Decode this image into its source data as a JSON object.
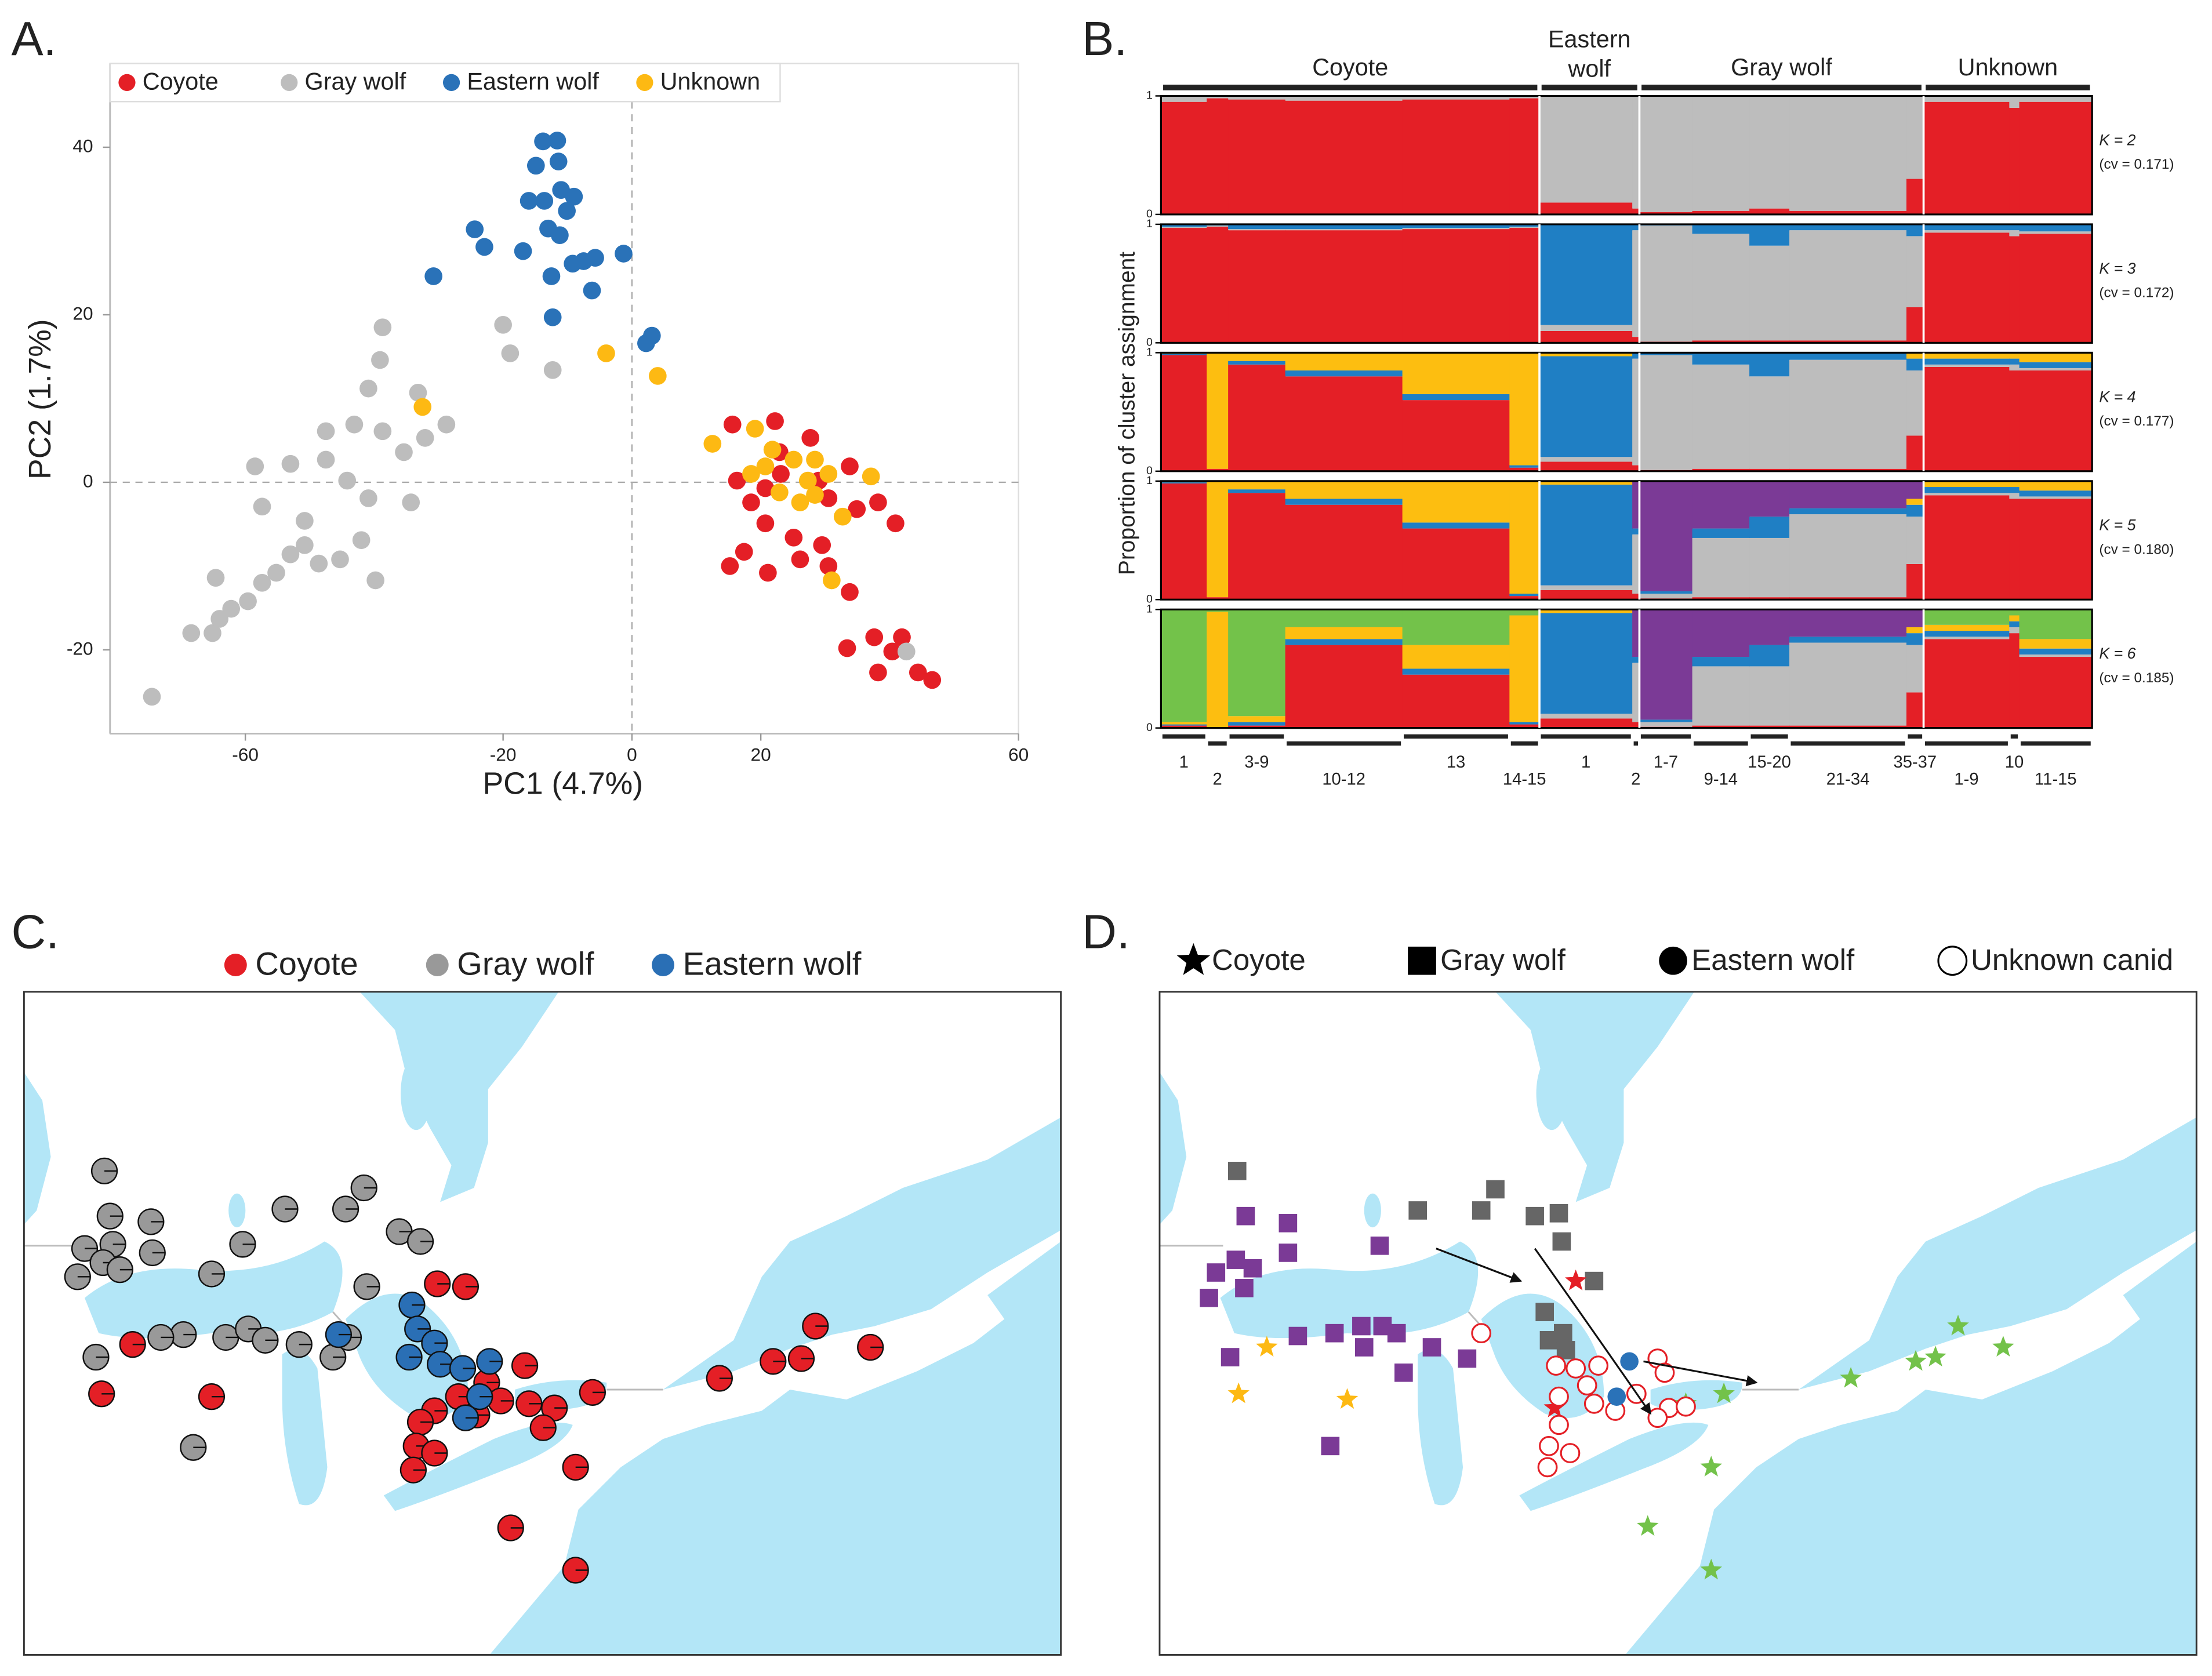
{
  "chart_data": [
    {
      "type": "scatter",
      "panel": "A.",
      "xlabel": "PC1 (4.7%)",
      "ylabel": "PC2 (1.7%)",
      "xlim": [
        -81,
        60
      ],
      "ylim": [
        -30,
        50
      ],
      "xticks": [
        -60,
        -20,
        0,
        20,
        60
      ],
      "yticks": [
        -20,
        0,
        20,
        40
      ],
      "zero_lines": true,
      "series": [
        {
          "name": "Coyote",
          "color": "#e41f26",
          "x": [
            15.6,
            22.2,
            27.7,
            16.3,
            18.5,
            20.7,
            23.1,
            29.0,
            33.8,
            38.2,
            40.9,
            20.7,
            25.1,
            29.5,
            15.2,
            21.1,
            26.1,
            30.5,
            33.8,
            33.4,
            37.6,
            40.4,
            41.9,
            38.2,
            44.4,
            46.6,
            17.4,
            30.5,
            34.9,
            22.9
          ],
          "values": [
            6.9,
            7.3,
            5.3,
            0.2,
            -2.4,
            -0.7,
            1.0,
            0.2,
            1.9,
            -2.4,
            -4.9,
            -4.9,
            -6.6,
            -7.5,
            -10.0,
            -10.8,
            -9.2,
            -10.0,
            -13.1,
            -19.8,
            -18.5,
            -20.2,
            -18.5,
            -22.7,
            -22.7,
            -23.6,
            -8.3,
            -1.9,
            -3.2,
            3.6
          ]
        },
        {
          "name": "Gray wolf",
          "color": "#bdbdbd",
          "x": [
            -74.5,
            -68.4,
            -65.1,
            -64.0,
            -62.2,
            -59.6,
            -57.4,
            -55.2,
            -53.0,
            -50.8,
            -48.6,
            -45.3,
            -42.0,
            -40.9,
            -57.4,
            -44.2,
            -47.5,
            -53.0,
            -58.5,
            -47.5,
            -43.1,
            -38.7,
            -35.4,
            -32.1,
            -28.8,
            -40.9,
            -33.2,
            -38.7,
            -39.1,
            -20.0,
            -18.9,
            -12.3,
            -34.3,
            -39.8,
            42.6,
            -64.6,
            -50.8
          ],
          "values": [
            -25.6,
            -18.0,
            -18.0,
            -16.3,
            -15.1,
            -14.2,
            -12.0,
            -10.8,
            -8.6,
            -7.5,
            -9.7,
            -9.2,
            -6.9,
            -1.9,
            -2.9,
            0.2,
            2.7,
            2.2,
            1.9,
            6.1,
            6.9,
            6.1,
            3.6,
            5.3,
            6.9,
            11.2,
            10.7,
            18.5,
            14.6,
            18.8,
            15.4,
            13.4,
            -2.4,
            -11.7,
            -20.2,
            -11.4,
            -4.6
          ]
        },
        {
          "name": "Eastern wolf",
          "color": "#2a72b8",
          "x": [
            -13.8,
            -11.6,
            -11.4,
            -14.9,
            -11.0,
            -9.0,
            -16.0,
            -13.6,
            -10.1,
            -24.4,
            -22.9,
            -16.9,
            -13.0,
            -11.2,
            -9.2,
            -7.5,
            -5.7,
            -1.3,
            -30.8,
            -12.5,
            -6.2,
            -12.3,
            2.2,
            3.1
          ],
          "values": [
            40.7,
            40.8,
            38.3,
            37.8,
            34.9,
            34.1,
            33.6,
            33.6,
            32.4,
            30.2,
            28.1,
            27.6,
            30.3,
            29.5,
            26.1,
            26.4,
            26.8,
            27.3,
            24.6,
            24.6,
            22.9,
            19.7,
            16.6,
            17.5
          ]
        },
        {
          "name": "Unknown",
          "color": "#fdb913",
          "x": [
            -32.5,
            -4.0,
            4.0,
            12.5,
            19.1,
            21.8,
            25.1,
            27.3,
            28.4,
            18.5,
            22.9,
            26.1,
            30.5,
            32.7,
            37.1,
            31.0,
            20.7,
            28.4
          ],
          "values": [
            9.0,
            15.4,
            12.7,
            4.6,
            6.4,
            3.9,
            2.7,
            0.2,
            -1.5,
            1.0,
            -1.2,
            -2.4,
            1.0,
            -4.1,
            0.7,
            -11.7,
            1.9,
            2.7
          ]
        }
      ]
    },
    {
      "type": "admixture",
      "panel": "B.",
      "ylabel": "Proportion of cluster assignment",
      "ylim": [
        0,
        1
      ],
      "yticks": [
        0,
        1
      ],
      "groups": [
        "Coyote",
        "Eastern wolf",
        "Gray wolf",
        "Unknown"
      ],
      "categories": [
        "1",
        "2",
        "3-9",
        "10-12",
        "13",
        "14-15",
        "1",
        "2",
        "1-7",
        "9-14",
        "15-20",
        "21-34",
        "35-37",
        "1-9",
        "10",
        "11-15"
      ],
      "rows": [
        {
          "label": "K = 2",
          "note": "(cv = 0.171)",
          "series": [
            {
              "color": "#e41f26",
              "values": [
                0.95,
                0.98,
                0.97,
                0.96,
                0.97,
                0.98,
                0.1,
                0.05,
                0.02,
                0.03,
                0.05,
                0.03,
                0.3,
                0.95,
                0.9,
                0.95
              ]
            },
            {
              "color": "#bdbdbd",
              "values": [
                0.05,
                0.02,
                0.03,
                0.04,
                0.03,
                0.02,
                0.9,
                0.95,
                0.98,
                0.97,
                0.95,
                0.97,
                0.7,
                0.05,
                0.1,
                0.05
              ]
            }
          ]
        },
        {
          "label": "K = 3",
          "note": "(cv = 0.172)",
          "series": [
            {
              "color": "#e41f26",
              "values": [
                0.97,
                0.98,
                0.95,
                0.95,
                0.96,
                0.97,
                0.1,
                0.05,
                0.01,
                0.02,
                0.02,
                0.02,
                0.3,
                0.93,
                0.9,
                0.92
              ]
            },
            {
              "color": "#bdbdbd",
              "values": [
                0.01,
                0.01,
                0.01,
                0.01,
                0.01,
                0.01,
                0.05,
                0.9,
                0.98,
                0.9,
                0.8,
                0.93,
                0.6,
                0.02,
                0.05,
                0.02
              ]
            },
            {
              "color": "#1f7fc4",
              "values": [
                0.02,
                0.01,
                0.04,
                0.04,
                0.03,
                0.02,
                0.85,
                0.05,
                0.01,
                0.08,
                0.18,
                0.05,
                0.1,
                0.05,
                0.05,
                0.06
              ]
            }
          ]
        },
        {
          "label": "K = 4",
          "note": "(cv = 0.177)",
          "series": [
            {
              "color": "#e41f26",
              "values": [
                0.98,
                0.02,
                0.9,
                0.8,
                0.6,
                0.03,
                0.08,
                0.05,
                0.01,
                0.02,
                0.02,
                0.02,
                0.3,
                0.88,
                0.85,
                0.85
              ]
            },
            {
              "color": "#bdbdbd",
              "values": [
                0,
                0,
                0,
                0,
                0,
                0,
                0.04,
                0.9,
                0.97,
                0.88,
                0.78,
                0.92,
                0.55,
                0.02,
                0.05,
                0.02
              ]
            },
            {
              "color": "#1f7fc4",
              "values": [
                0.01,
                0,
                0.03,
                0.05,
                0.05,
                0.02,
                0.85,
                0.05,
                0.02,
                0.1,
                0.2,
                0.06,
                0.1,
                0.05,
                0.05,
                0.05
              ]
            },
            {
              "color": "#fdbe10",
              "values": [
                0.01,
                0.98,
                0.07,
                0.15,
                0.35,
                0.95,
                0.03,
                0,
                0,
                0,
                0,
                0,
                0.05,
                0.05,
                0.05,
                0.08
              ]
            }
          ]
        },
        {
          "label": "K = 5",
          "note": "(cv = 0.180)",
          "series": [
            {
              "color": "#e41f26",
              "values": [
                0.98,
                0.02,
                0.9,
                0.8,
                0.6,
                0.03,
                0.08,
                0.05,
                0.01,
                0.02,
                0.02,
                0.02,
                0.3,
                0.88,
                0.85,
                0.85
              ]
            },
            {
              "color": "#bdbdbd",
              "values": [
                0,
                0,
                0,
                0,
                0,
                0,
                0.04,
                0.5,
                0.04,
                0.5,
                0.5,
                0.7,
                0.4,
                0.02,
                0.05,
                0.02
              ]
            },
            {
              "color": "#1f7fc4",
              "values": [
                0.01,
                0,
                0.03,
                0.05,
                0.05,
                0.02,
                0.85,
                0.05,
                0.02,
                0.08,
                0.18,
                0.05,
                0.1,
                0.05,
                0.05,
                0.05
              ]
            },
            {
              "color": "#fdbe10",
              "values": [
                0.01,
                0.98,
                0.07,
                0.15,
                0.35,
                0.95,
                0.03,
                0,
                0,
                0,
                0,
                0,
                0.05,
                0.05,
                0.05,
                0.08
              ]
            },
            {
              "color": "#7b3a96",
              "values": [
                0,
                0,
                0,
                0,
                0,
                0,
                0,
                0.4,
                0.93,
                0.4,
                0.3,
                0.23,
                0.15,
                0,
                0,
                0
              ]
            }
          ]
        },
        {
          "label": "K = 6",
          "note": "(cv = 0.185)",
          "series": [
            {
              "color": "#e41f26",
              "values": [
                0.02,
                0,
                0.02,
                0.7,
                0.45,
                0.03,
                0.08,
                0.05,
                0.01,
                0.02,
                0.02,
                0.02,
                0.3,
                0.75,
                0.8,
                0.6
              ]
            },
            {
              "color": "#bdbdbd",
              "values": [
                0,
                0,
                0,
                0,
                0,
                0,
                0.04,
                0.5,
                0.04,
                0.5,
                0.5,
                0.7,
                0.4,
                0.02,
                0.05,
                0.02
              ]
            },
            {
              "color": "#1f7fc4",
              "values": [
                0.01,
                0,
                0.03,
                0.05,
                0.05,
                0.02,
                0.85,
                0.05,
                0.02,
                0.08,
                0.18,
                0.05,
                0.1,
                0.05,
                0.05,
                0.05
              ]
            },
            {
              "color": "#fdbe10",
              "values": [
                0.02,
                0.98,
                0.05,
                0.1,
                0.2,
                0.9,
                0.03,
                0,
                0,
                0,
                0,
                0,
                0.05,
                0.05,
                0.05,
                0.08
              ]
            },
            {
              "color": "#7b3a96",
              "values": [
                0,
                0,
                0,
                0,
                0,
                0,
                0,
                0.4,
                0.93,
                0.4,
                0.3,
                0.23,
                0.15,
                0,
                0,
                0
              ]
            },
            {
              "color": "#73c24a",
              "values": [
                0.95,
                0.02,
                0.9,
                0.15,
                0.3,
                0.05,
                0,
                0,
                0,
                0,
                0,
                0,
                0,
                0.13,
                0.05,
                0.25
              ]
            }
          ]
        }
      ]
    },
    {
      "type": "map",
      "panel": "C.",
      "legend": [
        {
          "name": "Coyote",
          "color": "#e41f26",
          "shape": "circle"
        },
        {
          "name": "Gray wolf",
          "color": "#999999",
          "shape": "circle"
        },
        {
          "name": "Eastern wolf",
          "color": "#2a6fb5",
          "shape": "circle"
        }
      ]
    },
    {
      "type": "map",
      "panel": "D.",
      "legend": [
        {
          "name": "Coyote",
          "color": "#000000",
          "shape": "star"
        },
        {
          "name": "Gray wolf",
          "color": "#000000",
          "shape": "square"
        },
        {
          "name": "Eastern wolf",
          "color": "#000000",
          "shape": "circle"
        },
        {
          "name": "Unknown canid",
          "color": "#000000",
          "shape": "open-circle"
        }
      ]
    }
  ]
}
